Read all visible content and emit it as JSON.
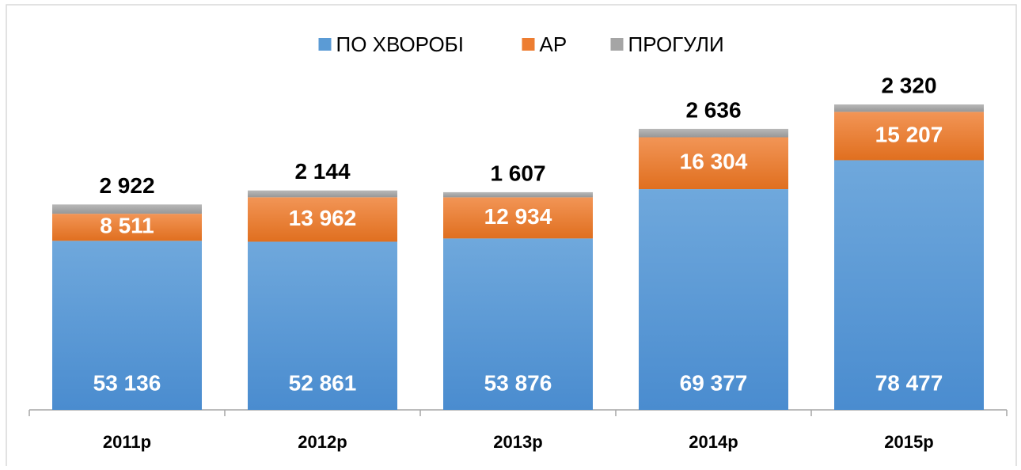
{
  "chart_data": {
    "type": "stacked_bar",
    "categories": [
      "2011р",
      "2012р",
      "2013р",
      "2014р",
      "2015р"
    ],
    "series": [
      {
        "name": "ПО ХВОРОБІ",
        "color": "#5b9bd5",
        "values": [
          53136,
          52861,
          53876,
          69377,
          78477
        ],
        "value_labels": [
          "53 136",
          "52 861",
          "53 876",
          "69 377",
          "78 477"
        ]
      },
      {
        "name": "АР",
        "color": "#ed7d31",
        "values": [
          8511,
          13962,
          12934,
          16304,
          15207
        ],
        "value_labels": [
          "8 511",
          "13 962",
          "12 934",
          "16 304",
          "15 207"
        ]
      },
      {
        "name": "ПРОГУЛИ",
        "color": "#a5a5a5",
        "values": [
          2922,
          2144,
          1607,
          2636,
          2320
        ],
        "value_labels": [
          "2 922",
          "2 144",
          "1 607",
          "2 636",
          "2 320"
        ]
      }
    ],
    "legend": "top"
  }
}
